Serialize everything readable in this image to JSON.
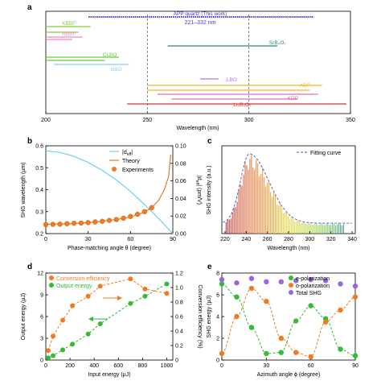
{
  "chart_data": [
    {
      "panel": "a",
      "type": "range",
      "xlabel": "Wavelength (nm)",
      "xlim": [
        200,
        350
      ],
      "xticks": [
        200,
        250,
        300,
        350
      ],
      "reference_lines": [
        250,
        300
      ],
      "annotation": "221–332 nm",
      "colors": {
        "quartz": "#5533cc",
        "KBBF": "#7fcf3a",
        "RBBF": "#ee88cc",
        "SrB4O7": "#2a8a7a",
        "CLBO": "#5fcf3a",
        "BBO": "#88ccee",
        "LBO": "#bb77dd",
        "ADP": "#f5b52a",
        "KDP": "#e06acc",
        "Li2B4O7": "#dd3333"
      },
      "series": [
        {
          "name": "APP quartz (This work)",
          "ranges": [
            [
              221,
              332
            ]
          ]
        },
        {
          "name": "KBBF",
          "ranges": [
            [
              200,
              222
            ],
            [
              200,
              216
            ]
          ]
        },
        {
          "name": "RBBF",
          "ranges": [
            [
              200,
              218
            ],
            [
              200,
              213
            ]
          ]
        },
        {
          "name": "SrB₄O₇",
          "ranges": [
            [
              260,
              314
            ]
          ]
        },
        {
          "name": "CLBO",
          "ranges": [
            [
              200,
              236
            ],
            [
              200,
              229
            ]
          ]
        },
        {
          "name": "BBO",
          "ranges": [
            [
              204,
              241
            ]
          ]
        },
        {
          "name": "LBO",
          "ranges": [
            [
              276,
              285
            ]
          ]
        },
        {
          "name": "ADP",
          "ranges": [
            [
              250,
              336
            ],
            [
              250,
              330
            ]
          ]
        },
        {
          "name": "KDP",
          "ranges": [
            [
              255,
              334
            ],
            [
              262,
              324
            ]
          ]
        },
        {
          "name": "Li₂B₄O₇",
          "ranges": [
            [
              240,
              348
            ]
          ]
        }
      ]
    },
    {
      "panel": "b",
      "type": "line",
      "xlabel": "Phase-matching angle θ (degree)",
      "ylabel": "SHG wavelength (μm)",
      "y2label": "|d_eff| (pm/V)",
      "xlim": [
        0,
        90
      ],
      "ylim": [
        0.2,
        0.6
      ],
      "y2lim": [
        0,
        0.1
      ],
      "xticks": [
        0,
        30,
        60,
        90
      ],
      "yticks": [
        0.2,
        0.3,
        0.4,
        0.5,
        0.6
      ],
      "y2ticks": [
        0.0,
        0.02,
        0.04,
        0.06,
        0.08,
        0.1
      ],
      "series": [
        {
          "name": "|d_eff|",
          "axis": "right",
          "color": "#6fd0ee",
          "x": [
            0,
            10,
            20,
            30,
            40,
            50,
            60,
            70,
            80,
            90
          ],
          "y": [
            0.0943,
            0.0925,
            0.088,
            0.081,
            0.072,
            0.061,
            0.048,
            0.033,
            0.017,
            0.0
          ]
        },
        {
          "name": "Theory",
          "axis": "left",
          "color": "#e87a1f",
          "x": [
            0,
            10,
            20,
            30,
            40,
            50,
            60,
            70,
            75,
            80,
            84,
            87,
            88.5
          ],
          "y": [
            0.242,
            0.244,
            0.246,
            0.25,
            0.256,
            0.264,
            0.276,
            0.298,
            0.318,
            0.352,
            0.4,
            0.46,
            0.56
          ]
        },
        {
          "name": "Experiments",
          "axis": "left",
          "color": "#f07a20",
          "x": [
            0,
            5,
            10,
            15,
            20,
            25,
            30,
            35,
            40,
            45,
            50,
            55,
            60,
            65,
            70,
            75
          ],
          "y": [
            0.241,
            0.242,
            0.243,
            0.245,
            0.247,
            0.248,
            0.25,
            0.253,
            0.256,
            0.26,
            0.264,
            0.27,
            0.278,
            0.288,
            0.3,
            0.318
          ]
        }
      ]
    },
    {
      "panel": "c",
      "type": "bar",
      "xlabel": "Wavelength (nm)",
      "ylabel": "SHG intensity (a.u.)",
      "xlim": [
        217,
        343
      ],
      "xticks": [
        220,
        240,
        260,
        280,
        300,
        320,
        340
      ],
      "legend": "Fitting curve",
      "peak_x": 243,
      "x_start": 221,
      "x_end": 332,
      "x_step": 1.5,
      "envelope": {
        "rise_width": 12,
        "fall_width": 26,
        "baseline": 0.13
      }
    },
    {
      "panel": "d",
      "type": "scatter",
      "xlabel": "Input energy (μJ)",
      "ylabel": "Output energy (μJ)",
      "y2label": "Conversion efficiency (%)",
      "xlim": [
        0,
        1050
      ],
      "ylim": [
        0,
        12
      ],
      "y2lim": [
        0,
        1.2
      ],
      "xticks": [
        0,
        200,
        400,
        600,
        800,
        1000
      ],
      "yticks": [
        0,
        3,
        6,
        9,
        12
      ],
      "y2ticks": [
        0,
        0.2,
        0.4,
        0.6,
        0.8,
        1.0,
        1.2
      ],
      "series": [
        {
          "name": "Conversion efficiency",
          "axis": "right",
          "color": "#f07a20",
          "x": [
            20,
            60,
            140,
            220,
            350,
            450,
            700,
            820,
            1000
          ],
          "y": [
            0.13,
            0.33,
            0.55,
            0.75,
            0.88,
            1.02,
            1.12,
            0.98,
            0.92
          ]
        },
        {
          "name": "Output energy",
          "axis": "left",
          "color": "#33bb33",
          "x": [
            20,
            60,
            140,
            220,
            350,
            450,
            700,
            820,
            1000
          ],
          "y": [
            0.3,
            0.6,
            1.4,
            2.2,
            3.6,
            5.0,
            7.8,
            8.8,
            10.5
          ]
        }
      ]
    },
    {
      "panel": "e",
      "type": "scatter",
      "xlabel": "Azimuth angle ϕ (degree)",
      "ylabel": "SHG energy (μJ)",
      "xlim": [
        0,
        90
      ],
      "ylim": [
        0,
        8
      ],
      "xticks": [
        0,
        30,
        60,
        90
      ],
      "yticks": [
        0,
        2,
        4,
        6,
        8
      ],
      "series": [
        {
          "name": "e-polarization",
          "color": "#33bb33",
          "x": [
            0,
            10,
            20,
            30,
            40,
            50,
            60,
            70,
            80,
            90
          ],
          "y": [
            7.0,
            5.8,
            3.0,
            0.6,
            0.7,
            3.6,
            5.0,
            3.8,
            1.0,
            0.4
          ]
        },
        {
          "name": "o-polarization",
          "color": "#f07a20",
          "x": [
            0,
            10,
            20,
            30,
            40,
            50,
            60,
            70,
            80,
            90
          ],
          "y": [
            0.6,
            4.0,
            6.6,
            5.4,
            2.0,
            0.7,
            0.3,
            3.5,
            4.6,
            5.8
          ]
        },
        {
          "name": "Total SHG",
          "color": "#9966dd",
          "x": [
            0,
            10,
            20,
            30,
            40,
            50,
            60,
            70,
            80,
            90
          ],
          "y": [
            7.4,
            7.1,
            7.5,
            7.2,
            7.2,
            7.3,
            7.4,
            7.3,
            7.0,
            6.8
          ]
        }
      ]
    }
  ],
  "panel_labels": {
    "a": "a",
    "b": "b",
    "c": "c",
    "d": "d",
    "e": "e"
  },
  "legend_b": {
    "deff": "|d",
    "deff_sub": "eff",
    "deff_end": "|",
    "theory": "Theory",
    "experiments": "Experiments"
  },
  "legend_d": {
    "eff": "Conversion efficiency",
    "out": "Output energy"
  },
  "legend_e": {
    "e": "e-polarization",
    "o": "o-polarization",
    "t": "Total SHG"
  },
  "y2label_b_parts": {
    "bar": "|d",
    "sub": "eff",
    "end": "| (pm/V)"
  }
}
